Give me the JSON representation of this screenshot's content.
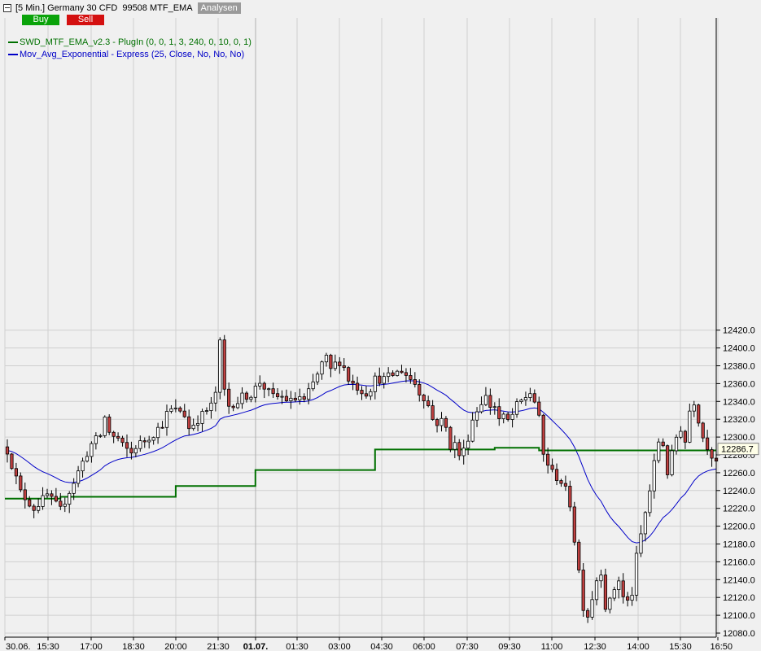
{
  "header": {
    "instrument": "[5 Min.] Germany 30 CFD",
    "account": "99508 MTF_EMA",
    "analysen_label": "Analysen"
  },
  "buttons": {
    "buy_label": "Buy",
    "sell_label": "Sell"
  },
  "colors": {
    "mtf_line": "#007000",
    "ema_line": "#0000c8",
    "up_candle": "#ffffff",
    "down_candle": "#c04040"
  },
  "legend": [
    {
      "text": "SWD_MTF_EMA_v2.3 - PlugIn  (0, 0, 1, 3, 240, 0, 10, 0, 1)",
      "color": "#007000"
    },
    {
      "text": "Mov_Avg_Exponential - Express  (25, Close, No, No, No)",
      "color": "#0000c8"
    }
  ],
  "chart_data": {
    "type": "candlestick",
    "y_axis": {
      "position": "right",
      "min": 12080,
      "max": 12420,
      "ticks": [
        "12420.0",
        "12400.0",
        "12380.0",
        "12360.0",
        "12340.0",
        "12320.0",
        "12300.0",
        "12280.0",
        "12260.0",
        "12240.0",
        "12220.0",
        "12200.0",
        "12180.0",
        "12160.0",
        "12140.0",
        "12120.0",
        "12100.0",
        "12080.0"
      ]
    },
    "x_axis": {
      "ticks": [
        "30.06.",
        "15:30",
        "17:00",
        "18:30",
        "20:00",
        "21:30",
        "01.07.",
        "01:30",
        "03:00",
        "04:30",
        "06:00",
        "07:30",
        "09:30",
        "11:00",
        "12:30",
        "14:00",
        "15:30",
        "16:50"
      ],
      "bold_ticks": [
        "01.07."
      ]
    },
    "grid": true,
    "last_price": "12286.7",
    "close_path": [
      [
        0,
        12285
      ],
      [
        3,
        12238
      ],
      [
        6,
        12220
      ],
      [
        9,
        12235
      ],
      [
        12,
        12218
      ],
      [
        15,
        12250
      ],
      [
        17,
        12272
      ],
      [
        19,
        12292
      ],
      [
        21,
        12302
      ],
      [
        22,
        12322
      ],
      [
        23,
        12306
      ],
      [
        24,
        12300
      ],
      [
        25,
        12298
      ],
      [
        26,
        12290
      ],
      [
        28,
        12282
      ],
      [
        29,
        12290
      ],
      [
        31,
        12296
      ],
      [
        32,
        12300
      ],
      [
        33,
        12304
      ],
      [
        35,
        12315
      ],
      [
        36,
        12326
      ],
      [
        37,
        12330
      ],
      [
        39,
        12330
      ],
      [
        40,
        12325
      ],
      [
        41,
        12310
      ],
      [
        43,
        12320
      ],
      [
        46,
        12335
      ],
      [
        47,
        12350
      ],
      [
        48,
        12405
      ],
      [
        49,
        12352
      ],
      [
        50,
        12335
      ],
      [
        51,
        12338
      ],
      [
        52,
        12340
      ],
      [
        53,
        12345
      ],
      [
        55,
        12348
      ],
      [
        57,
        12362
      ],
      [
        59,
        12350
      ],
      [
        60,
        12345
      ],
      [
        62,
        12345
      ],
      [
        64,
        12340
      ],
      [
        66,
        12345
      ],
      [
        67,
        12340
      ],
      [
        68,
        12350
      ],
      [
        70,
        12370
      ],
      [
        71,
        12382
      ],
      [
        72,
        12388
      ],
      [
        73,
        12375
      ],
      [
        74,
        12382
      ],
      [
        75,
        12385
      ],
      [
        76,
        12378
      ],
      [
        77,
        12365
      ],
      [
        78,
        12360
      ],
      [
        80,
        12352
      ],
      [
        81,
        12350
      ],
      [
        82,
        12355
      ],
      [
        83,
        12365
      ],
      [
        85,
        12365
      ],
      [
        87,
        12370
      ],
      [
        89,
        12375
      ],
      [
        90,
        12370
      ],
      [
        91,
        12365
      ],
      [
        92,
        12360
      ],
      [
        93,
        12350
      ],
      [
        94,
        12345
      ],
      [
        95,
        12335
      ],
      [
        96,
        12320
      ],
      [
        97,
        12316
      ],
      [
        98,
        12318
      ],
      [
        99,
        12310
      ],
      [
        100,
        12290
      ],
      [
        101,
        12292
      ],
      [
        102,
        12280
      ],
      [
        103,
        12285
      ],
      [
        104,
        12300
      ],
      [
        105,
        12320
      ],
      [
        106,
        12330
      ],
      [
        107,
        12340
      ],
      [
        108,
        12345
      ],
      [
        109,
        12335
      ],
      [
        110,
        12335
      ],
      [
        111,
        12320
      ],
      [
        112,
        12322
      ],
      [
        113,
        12318
      ],
      [
        114,
        12325
      ],
      [
        115,
        12335
      ],
      [
        116,
        12340
      ],
      [
        117,
        12345
      ],
      [
        118,
        12350
      ],
      [
        119,
        12340
      ],
      [
        120,
        12320
      ],
      [
        121,
        12280
      ],
      [
        122,
        12270
      ],
      [
        123,
        12260
      ],
      [
        124,
        12255
      ],
      [
        125,
        12250
      ],
      [
        126,
        12240
      ],
      [
        127,
        12225
      ],
      [
        128,
        12185
      ],
      [
        129,
        12150
      ],
      [
        130,
        12110
      ],
      [
        131,
        12100
      ],
      [
        132,
        12120
      ],
      [
        133,
        12140
      ],
      [
        134,
        12150
      ],
      [
        135,
        12110
      ],
      [
        136,
        12115
      ],
      [
        137,
        12130
      ],
      [
        138,
        12140
      ],
      [
        139,
        12120
      ],
      [
        140,
        12115
      ],
      [
        141,
        12125
      ],
      [
        142,
        12165
      ],
      [
        143,
        12190
      ],
      [
        144,
        12215
      ],
      [
        145,
        12240
      ],
      [
        146,
        12270
      ],
      [
        147,
        12295
      ],
      [
        148,
        12292
      ],
      [
        149,
        12260
      ],
      [
        150,
        12280
      ],
      [
        151,
        12300
      ],
      [
        152,
        12310
      ],
      [
        153,
        12295
      ],
      [
        154,
        12330
      ],
      [
        155,
        12340
      ],
      [
        156,
        12320
      ],
      [
        157,
        12300
      ],
      [
        158,
        12290
      ],
      [
        159,
        12280
      ],
      [
        160,
        12275
      ]
    ]
  }
}
